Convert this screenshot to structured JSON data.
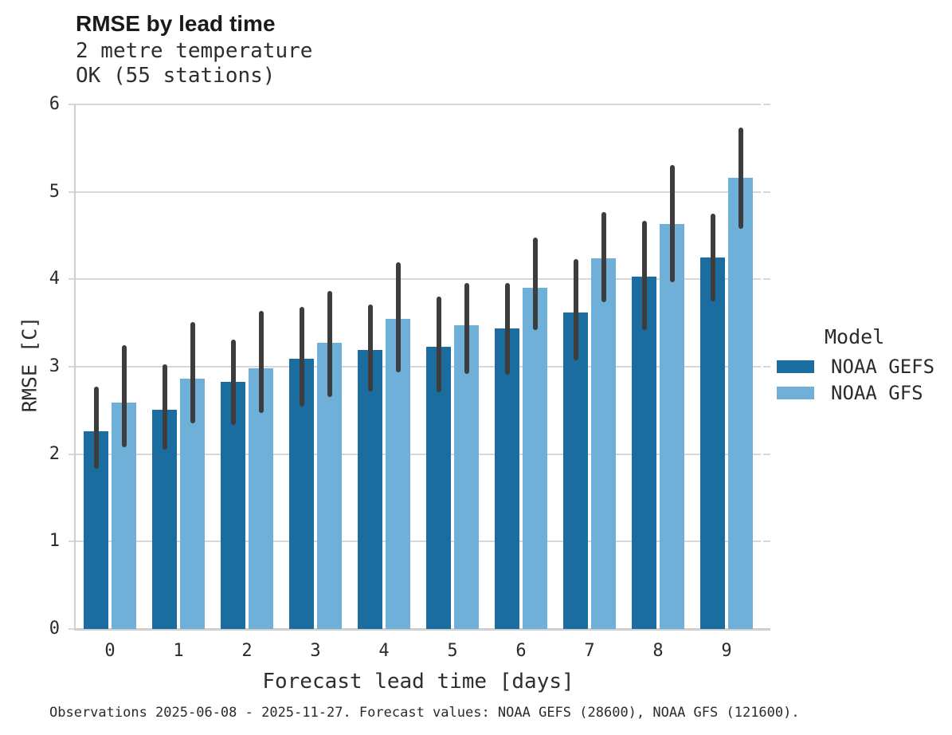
{
  "chart_data": {
    "type": "bar",
    "title": "RMSE by lead time",
    "subtitle_line1": "2 metre temperature",
    "subtitle_line2": "OK (55 stations)",
    "xlabel": "Forecast lead time [days]",
    "ylabel": "RMSE [C]",
    "ylim": [
      0,
      6
    ],
    "yticks": [
      0,
      1,
      2,
      3,
      4,
      5,
      6
    ],
    "categories": [
      "0",
      "1",
      "2",
      "3",
      "4",
      "5",
      "6",
      "7",
      "8",
      "9"
    ],
    "grid": "horizontal",
    "legend": {
      "title": "Model",
      "position": "right"
    },
    "error_bar_color": "#3d3d3d",
    "series": [
      {
        "name": "NOAA GEFS",
        "color": "#1A6D9E",
        "values": [
          2.26,
          2.51,
          2.83,
          3.09,
          3.19,
          3.23,
          3.44,
          3.62,
          4.03,
          4.25
        ],
        "err_low": [
          1.83,
          2.05,
          2.33,
          2.54,
          2.72,
          2.71,
          2.91,
          3.07,
          3.42,
          3.75
        ],
        "err_high": [
          2.77,
          3.03,
          3.31,
          3.68,
          3.71,
          3.8,
          3.96,
          4.23,
          4.67,
          4.75
        ]
      },
      {
        "name": "NOAA GFS",
        "color": "#6FB0D8",
        "values": [
          2.59,
          2.86,
          2.98,
          3.27,
          3.55,
          3.47,
          3.9,
          4.24,
          4.63,
          5.16
        ],
        "err_low": [
          2.08,
          2.35,
          2.47,
          2.65,
          2.94,
          2.92,
          3.42,
          3.74,
          3.97,
          4.58
        ],
        "err_high": [
          3.25,
          3.51,
          3.64,
          3.87,
          4.19,
          3.96,
          4.48,
          4.77,
          5.31,
          5.74
        ]
      }
    ],
    "caption": "Observations 2025-06-08 - 2025-11-27. Forecast values: NOAA GEFS (28600), NOAA GFS (121600)."
  }
}
